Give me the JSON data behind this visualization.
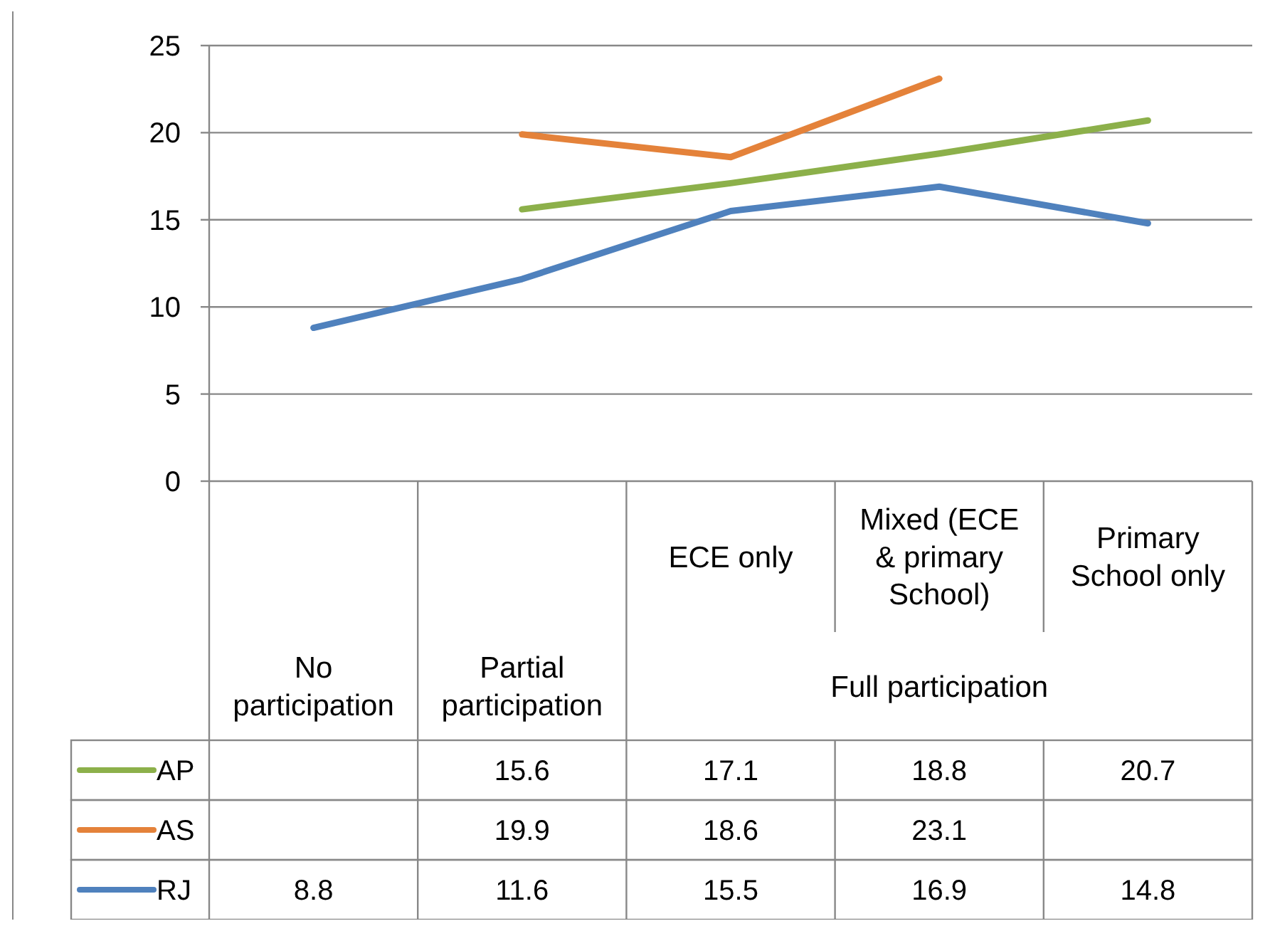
{
  "chart_data": {
    "type": "line",
    "categories": [
      "No participation",
      "Partial participation",
      "ECE only",
      "Mixed (ECE & primary School)",
      "Primary School only"
    ],
    "series": [
      {
        "name": "AP",
        "color": "#8cb04a",
        "values": [
          null,
          15.6,
          17.1,
          18.8,
          20.7
        ]
      },
      {
        "name": "AS",
        "color": "#e4823a",
        "values": [
          null,
          19.9,
          18.6,
          23.1,
          null
        ]
      },
      {
        "name": "RJ",
        "color": "#4f81bd",
        "values": [
          8.8,
          11.6,
          15.5,
          16.9,
          14.8
        ]
      }
    ],
    "ylim": [
      0,
      25
    ],
    "yticks": [
      0,
      5,
      10,
      15,
      20,
      25
    ],
    "grid": "y",
    "legend": "bottom",
    "data_labels": true,
    "line_style": "solid",
    "marker": "none",
    "annotations": [
      "Full participation"
    ]
  }
}
